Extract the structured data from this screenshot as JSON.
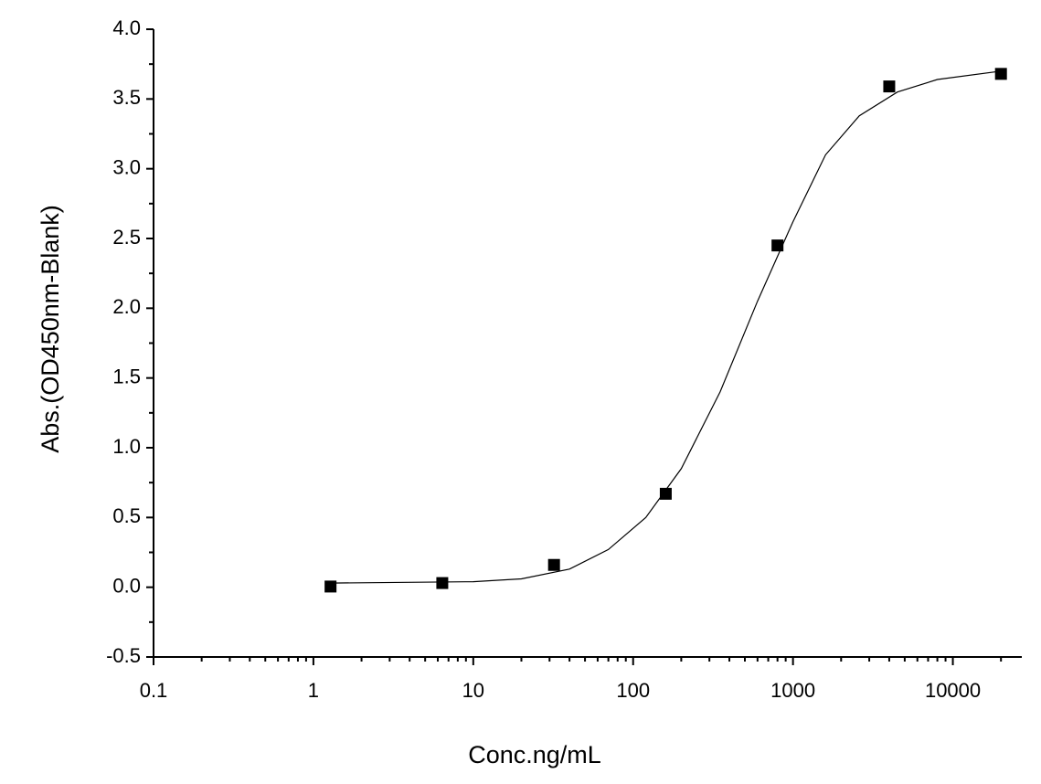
{
  "chart_data": {
    "type": "scatter",
    "x_label": "Conc.ng/mL",
    "y_label": "Abs.(OD450nm-Blank)",
    "x": [
      1.28,
      6.4,
      32,
      160,
      800,
      4000,
      20000
    ],
    "values": [
      0.005,
      0.03,
      0.16,
      0.67,
      2.45,
      3.59,
      3.68
    ],
    "color": "#000000",
    "fit": {
      "x": [
        1.28,
        10,
        20,
        40,
        70,
        120,
        200,
        350,
        600,
        1000,
        1600,
        2600,
        4500,
        8000,
        20000
      ],
      "values": [
        0.03,
        0.04,
        0.06,
        0.13,
        0.27,
        0.5,
        0.85,
        1.4,
        2.05,
        2.62,
        3.1,
        3.38,
        3.55,
        3.64,
        3.7
      ],
      "color": "#000000"
    },
    "x_log": true,
    "xlim": [
      0.1,
      27000
    ],
    "xticks": [
      0.1,
      1,
      10,
      100,
      1000,
      10000
    ],
    "ylim": [
      -0.5,
      4
    ],
    "yticks": [
      -0.5,
      {
        "value": 0,
        "label": "0.0"
      },
      0.5,
      {
        "value": 1,
        "label": "1.0"
      },
      1.5,
      {
        "value": 2,
        "label": "2.0"
      },
      2.5,
      {
        "value": 3,
        "label": "3.0"
      },
      3.5,
      {
        "value": 4,
        "label": "4.0"
      }
    ],
    "grid": false
  }
}
